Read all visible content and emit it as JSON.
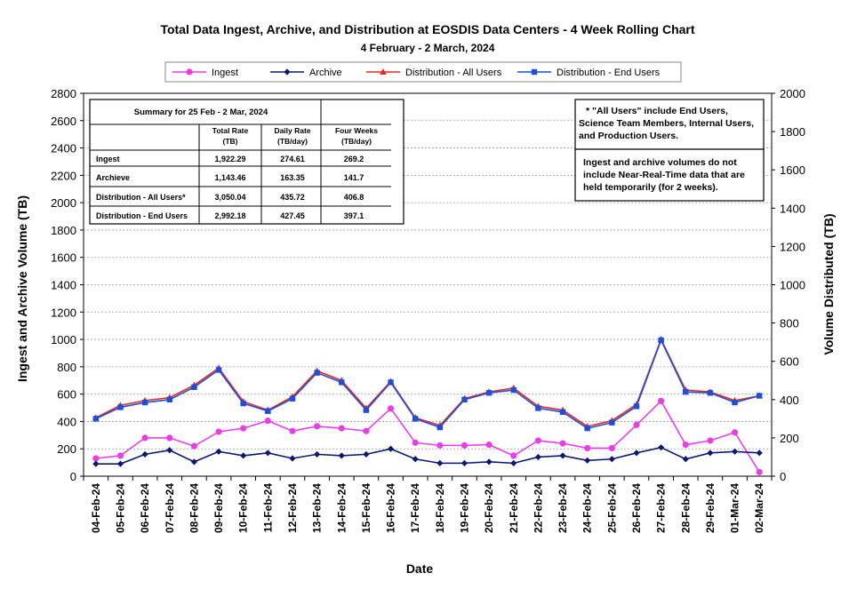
{
  "chart_data": {
    "type": "line",
    "title": "Total Data Ingest, Archive, and  Distribution at EOSDIS Data Centers - 4 Week Rolling Chart",
    "subtitle": "4  February   -  2  March,  2024",
    "xlabel": "Date",
    "ylabel_left": "Ingest and Archive Volume (TB)",
    "ylabel_right": "Volume Distributed (TB)",
    "y_left": {
      "min": 0,
      "max": 2800,
      "step": 200
    },
    "y_right": {
      "min": 0,
      "max": 2000,
      "step": 200
    },
    "grid": true,
    "legend_position": "top",
    "categories": [
      "04-Feb-24",
      "05-Feb-24",
      "06-Feb-24",
      "07-Feb-24",
      "08-Feb-24",
      "09-Feb-24",
      "10-Feb-24",
      "11-Feb-24",
      "12-Feb-24",
      "13-Feb-24",
      "14-Feb-24",
      "15-Feb-24",
      "16-Feb-24",
      "17-Feb-24",
      "18-Feb-24",
      "19-Feb-24",
      "20-Feb-24",
      "21-Feb-24",
      "22-Feb-24",
      "23-Feb-24",
      "24-Feb-24",
      "25-Feb-24",
      "26-Feb-24",
      "27-Feb-24",
      "28-Feb-24",
      "29-Feb-24",
      "01-Mar-24",
      "02-Mar-24"
    ],
    "series": [
      {
        "name": "Ingest",
        "axis": "left",
        "color": "#e83ee8",
        "marker": "circle",
        "values": [
          130,
          150,
          280,
          280,
          220,
          325,
          350,
          405,
          330,
          365,
          350,
          330,
          495,
          245,
          225,
          225,
          230,
          150,
          260,
          240,
          205,
          205,
          375,
          550,
          230,
          260,
          320,
          30
        ]
      },
      {
        "name": "Archive",
        "axis": "left",
        "color": "#0a1a6e",
        "marker": "diamond",
        "values": [
          90,
          90,
          160,
          190,
          105,
          180,
          150,
          170,
          130,
          160,
          150,
          160,
          200,
          125,
          95,
          95,
          105,
          95,
          140,
          150,
          115,
          125,
          170,
          210,
          125,
          170,
          180,
          170
        ]
      },
      {
        "name": "Distribution - All Users",
        "axis": "right",
        "color": "#e8281e",
        "marker": "triangle",
        "values": [
          305,
          370,
          395,
          410,
          475,
          565,
          390,
          345,
          415,
          550,
          500,
          355,
          495,
          305,
          265,
          405,
          440,
          460,
          365,
          345,
          260,
          290,
          375,
          715,
          450,
          440,
          395,
          420
        ]
      },
      {
        "name": "Distribution - End Users",
        "axis": "right",
        "color": "#1f4fd6",
        "marker": "square",
        "values": [
          300,
          360,
          385,
          400,
          465,
          555,
          380,
          340,
          405,
          540,
          490,
          345,
          490,
          300,
          255,
          400,
          435,
          450,
          355,
          335,
          250,
          280,
          365,
          710,
          440,
          435,
          385,
          420
        ]
      }
    ]
  },
  "summary_table": {
    "title": "Summary  for  25  Feb   -  2  Mar,  2024",
    "headers": [
      {
        "line1": "Total Rate",
        "line2": "(TB)"
      },
      {
        "line1": "Daily Rate",
        "line2": "(TB/day)"
      },
      {
        "line1": "Four Weeks",
        "line2": "(TB/day)"
      }
    ],
    "rows": [
      {
        "label": "Ingest",
        "total": "1,922.29",
        "daily": "274.61",
        "four": "269.2"
      },
      {
        "label": "Archieve",
        "total": "1,143.46",
        "daily": "163.35",
        "four": "141.7"
      },
      {
        "label": "Distribution - All Users*",
        "total": "3,050.04",
        "daily": "435.72",
        "four": "406.8"
      },
      {
        "label": "Distribution - End Users",
        "total": "2,992.18",
        "daily": "427.45",
        "four": "397.1"
      }
    ]
  },
  "notes": {
    "box1": [
      "* \"All Users\" include End Users,",
      "Science Team Members,  Internal Users,",
      "and Production Users."
    ],
    "box2": [
      "Ingest and archive volumes do not",
      "include Near-Real-Time data that are",
      "held temporarily (for 2 weeks)."
    ]
  }
}
